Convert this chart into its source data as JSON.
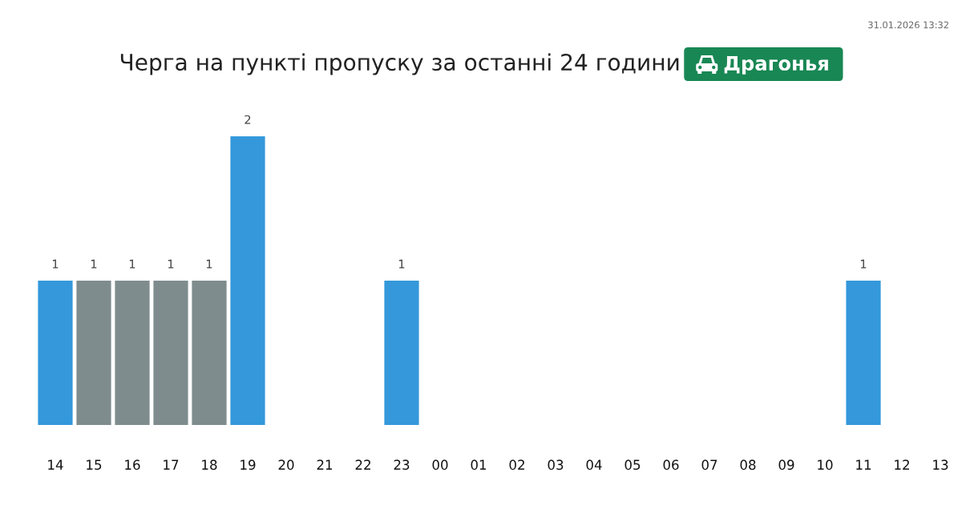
{
  "chart_data": {
    "type": "bar",
    "title": "Черга на пункті пропуску за останні 24 години",
    "subtitle": "Драгонья",
    "categories": [
      "14",
      "15",
      "16",
      "17",
      "18",
      "19",
      "20",
      "21",
      "22",
      "23",
      "00",
      "01",
      "02",
      "03",
      "04",
      "05",
      "06",
      "07",
      "08",
      "09",
      "10",
      "11",
      "12",
      "13"
    ],
    "values": [
      1,
      1,
      1,
      1,
      1,
      2,
      0,
      0,
      0,
      1,
      0,
      0,
      0,
      0,
      0,
      0,
      0,
      0,
      0,
      0,
      0,
      1,
      0,
      0
    ],
    "colors": [
      "#3498db",
      "#7f8c8d",
      "#7f8c8d",
      "#7f8c8d",
      "#7f8c8d",
      "#3498db",
      "#3498db",
      "#3498db",
      "#3498db",
      "#3498db",
      "#3498db",
      "#3498db",
      "#3498db",
      "#3498db",
      "#3498db",
      "#3498db",
      "#3498db",
      "#3498db",
      "#3498db",
      "#3498db",
      "#3498db",
      "#3498db",
      "#3498db",
      "#3498db"
    ],
    "value_labels": [
      "1",
      "1",
      "1",
      "1",
      "1",
      "2",
      null,
      null,
      null,
      "1",
      null,
      null,
      null,
      null,
      null,
      null,
      null,
      null,
      null,
      null,
      null,
      "1",
      null,
      null
    ],
    "tick_labels": "x",
    "annotations": [
      "31.01.2026 13:32"
    ]
  }
}
